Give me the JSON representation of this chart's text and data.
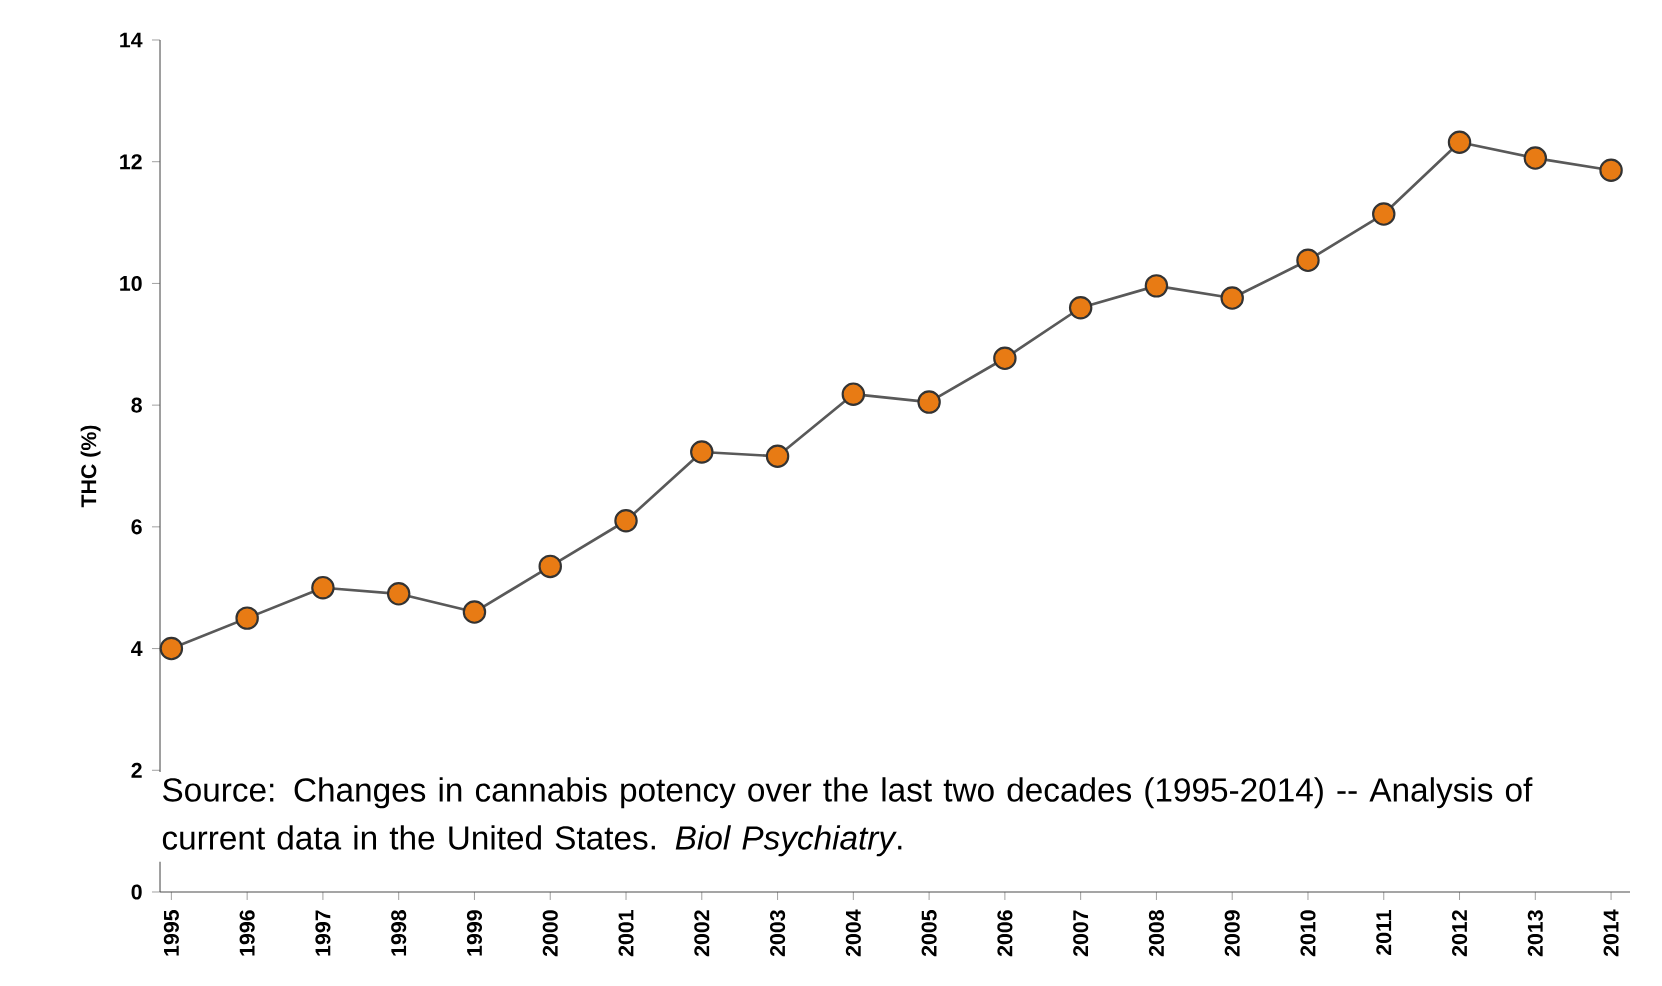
{
  "chart_data": {
    "type": "line",
    "ylabel": "THC (%)",
    "categories": [
      "1995",
      "1996",
      "1997",
      "1998",
      "1999",
      "2000",
      "2001",
      "2002",
      "2003",
      "2004",
      "2005",
      "2006",
      "2007",
      "2008",
      "2009",
      "2010",
      "2011",
      "2012",
      "2013",
      "2014"
    ],
    "series": [
      {
        "color": "#e87b14",
        "values": [
          4.0,
          4.5,
          5.0,
          4.9,
          4.6,
          5.35,
          6.1,
          7.23,
          7.16,
          8.18,
          8.05,
          8.77,
          9.6,
          9.96,
          9.76,
          10.38,
          11.14,
          12.32,
          12.06,
          11.86
        ]
      }
    ],
    "ylim": [
      0,
      14
    ],
    "yticks": [
      0,
      2,
      4,
      6,
      8,
      10,
      12,
      14
    ],
    "grid": false,
    "marker": "circle",
    "line_style": "solid",
    "annotations": [
      "Source: Changes in cannabis potency over the last two decades (1995-2014) -- Analysis of current data in the United States. *Biol Psychiatry*."
    ]
  }
}
